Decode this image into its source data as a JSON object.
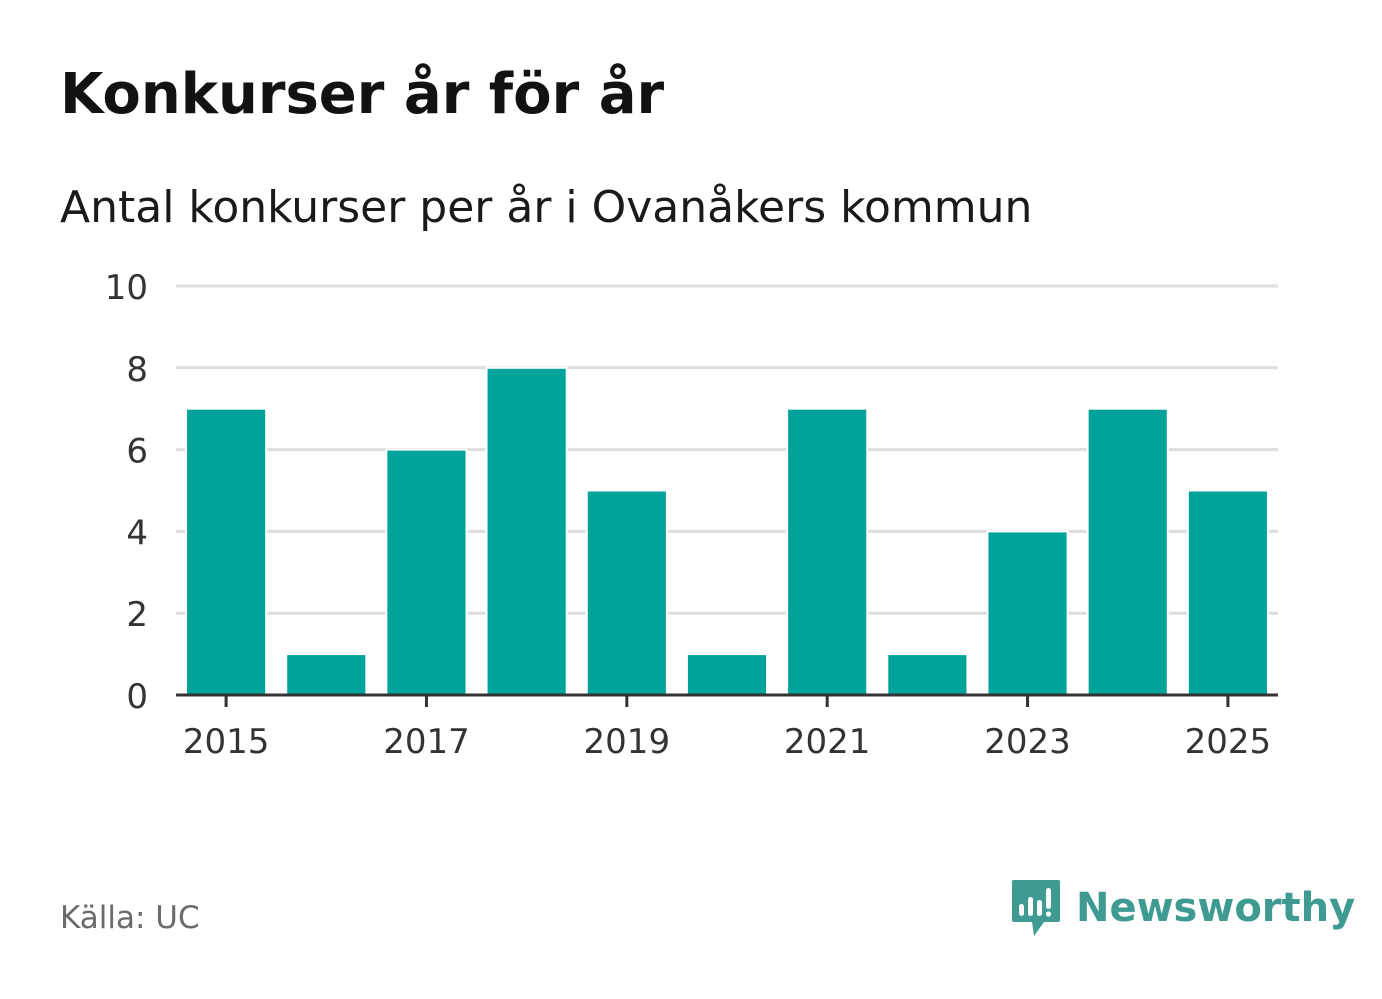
{
  "title": "Konkurser år för år",
  "subtitle": "Antal konkurser per år i Ovanåkers kommun",
  "source": "Källa: UC",
  "brand": {
    "name": "Newsworthy",
    "icon": "newsworthy-logo-icon",
    "color": "#3f9a92"
  },
  "colors": {
    "bar": "#00a39a",
    "grid": "#dddddd",
    "axis": "#333333",
    "tick_text": "#333333"
  },
  "chart_data": {
    "type": "bar",
    "categories": [
      "2015",
      "2016",
      "2017",
      "2018",
      "2019",
      "2020",
      "2021",
      "2022",
      "2023",
      "2024",
      "2025"
    ],
    "values": [
      7,
      1,
      6,
      8,
      5,
      1,
      7,
      1,
      4,
      7,
      5
    ],
    "x_tick_labels": [
      "2015",
      "2017",
      "2019",
      "2021",
      "2023",
      "2025"
    ],
    "y_ticks": [
      0,
      2,
      4,
      6,
      8,
      10
    ],
    "ylim": [
      0,
      10
    ],
    "xlabel": "",
    "ylabel": "",
    "grid": true
  }
}
